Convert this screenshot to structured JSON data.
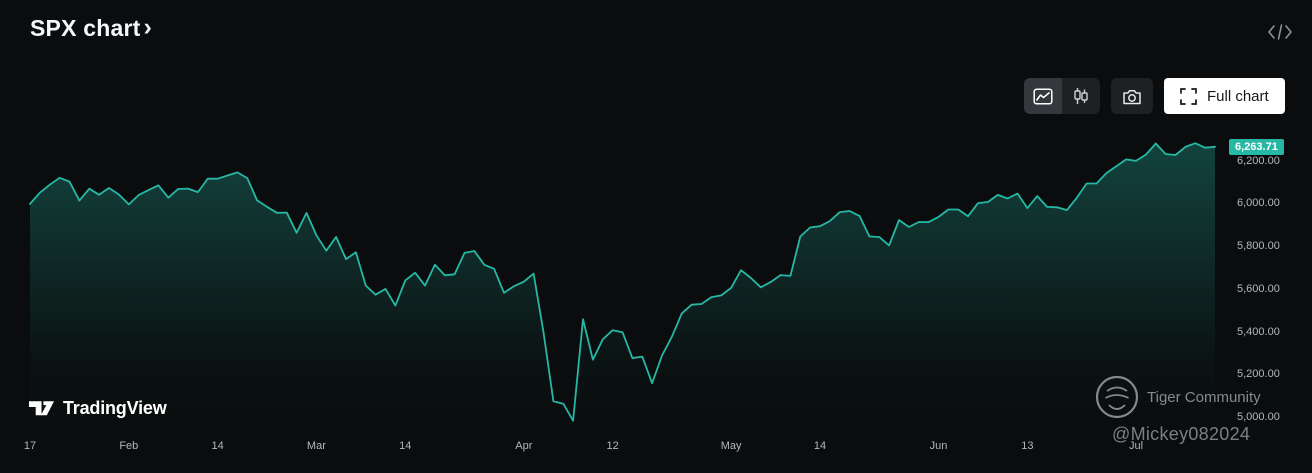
{
  "header": {
    "title": "SPX chart",
    "chevron": "›"
  },
  "toolbar": {
    "full_chart_label": "Full chart",
    "icons": [
      "area-style-icon",
      "candles-style-icon",
      "camera-snapshot-icon",
      "fullscreen-corners-icon",
      "embed-code-icon"
    ]
  },
  "branding": {
    "tradingview_label": "TradingView",
    "tradingview_logo_icon": "tv-17-mark"
  },
  "watermark": {
    "community_label": "Tiger Community",
    "handle": "@Mickey082024",
    "logo_icon": "tiger-circle-mark"
  },
  "colors": {
    "accent": "#26b8a5",
    "background": "#0a0c0d",
    "axis_text": "#b4b7bc",
    "badge_text": "#ffffff",
    "full_chart_bg": "#ffffff",
    "full_chart_text": "#16191c"
  },
  "chart_data": {
    "type": "area",
    "title": "SPX chart",
    "legend": [
      "SPX"
    ],
    "grid": false,
    "legend_position": "none",
    "ylim": [
      4930,
      6305
    ],
    "y_ticks": [
      6200,
      6000,
      5800,
      5600,
      5400,
      5200,
      5000
    ],
    "y_tick_labels": [
      "6,200.00",
      "6,000.00",
      "5,800.00",
      "5,600.00",
      "5,400.00",
      "5,200.00",
      "5,000.00"
    ],
    "x_ticks": [
      {
        "label": "17",
        "date": "2025-01-17"
      },
      {
        "label": "Feb",
        "date": "2025-02-01"
      },
      {
        "label": "14",
        "date": "2025-02-14"
      },
      {
        "label": "Mar",
        "date": "2025-03-01"
      },
      {
        "label": "14",
        "date": "2025-03-14"
      },
      {
        "label": "Apr",
        "date": "2025-04-01"
      },
      {
        "label": "12",
        "date": "2025-04-12"
      },
      {
        "label": "May",
        "date": "2025-05-01"
      },
      {
        "label": "14",
        "date": "2025-05-14"
      },
      {
        "label": "Jun",
        "date": "2025-06-01"
      },
      {
        "label": "13",
        "date": "2025-06-13"
      },
      {
        "label": "Jul",
        "date": "2025-07-01"
      }
    ],
    "last_price": 6263.71,
    "series": [
      {
        "name": "SPX",
        "points": [
          [
            "2025-01-17",
            5996.66
          ],
          [
            "2025-01-21",
            6049.24
          ],
          [
            "2025-01-22",
            6086.37
          ],
          [
            "2025-01-23",
            6118.71
          ],
          [
            "2025-01-24",
            6101.24
          ],
          [
            "2025-01-27",
            6012.28
          ],
          [
            "2025-01-28",
            6067.7
          ],
          [
            "2025-01-29",
            6039.31
          ],
          [
            "2025-01-30",
            6071.17
          ],
          [
            "2025-01-31",
            6040.53
          ],
          [
            "2025-02-03",
            5994.57
          ],
          [
            "2025-02-04",
            6037.88
          ],
          [
            "2025-02-05",
            6061.48
          ],
          [
            "2025-02-06",
            6083.57
          ],
          [
            "2025-02-07",
            6025.99
          ],
          [
            "2025-02-10",
            6066.44
          ],
          [
            "2025-02-11",
            6068.5
          ],
          [
            "2025-02-12",
            6051.97
          ],
          [
            "2025-02-13",
            6115.07
          ],
          [
            "2025-02-14",
            6114.63
          ],
          [
            "2025-02-18",
            6129.58
          ],
          [
            "2025-02-19",
            6144.15
          ],
          [
            "2025-02-20",
            6117.52
          ],
          [
            "2025-02-21",
            6013.13
          ],
          [
            "2025-02-24",
            5983.25
          ],
          [
            "2025-02-25",
            5955.25
          ],
          [
            "2025-02-26",
            5956.06
          ],
          [
            "2025-02-27",
            5861.57
          ],
          [
            "2025-02-28",
            5954.5
          ],
          [
            "2025-03-03",
            5849.72
          ],
          [
            "2025-03-04",
            5778.15
          ],
          [
            "2025-03-05",
            5842.63
          ],
          [
            "2025-03-06",
            5738.52
          ],
          [
            "2025-03-07",
            5770.2
          ],
          [
            "2025-03-10",
            5614.56
          ],
          [
            "2025-03-11",
            5572.07
          ],
          [
            "2025-03-12",
            5599.3
          ],
          [
            "2025-03-13",
            5521.52
          ],
          [
            "2025-03-14",
            5638.94
          ],
          [
            "2025-03-17",
            5675.12
          ],
          [
            "2025-03-18",
            5614.66
          ],
          [
            "2025-03-19",
            5712.2
          ],
          [
            "2025-03-20",
            5662.89
          ],
          [
            "2025-03-21",
            5667.56
          ],
          [
            "2025-03-24",
            5767.57
          ],
          [
            "2025-03-25",
            5776.65
          ],
          [
            "2025-03-26",
            5712.2
          ],
          [
            "2025-03-27",
            5693.31
          ],
          [
            "2025-03-28",
            5580.94
          ],
          [
            "2025-03-31",
            5611.85
          ],
          [
            "2025-04-01",
            5633.07
          ],
          [
            "2025-04-02",
            5670.97
          ],
          [
            "2025-04-03",
            5396.52
          ],
          [
            "2025-04-04",
            5074.08
          ],
          [
            "2025-04-07",
            5062.25
          ],
          [
            "2025-04-08",
            4982.77
          ],
          [
            "2025-04-09",
            5456.9
          ],
          [
            "2025-04-10",
            5268.05
          ],
          [
            "2025-04-11",
            5363.36
          ],
          [
            "2025-04-14",
            5405.97
          ],
          [
            "2025-04-15",
            5396.63
          ],
          [
            "2025-04-16",
            5275.7
          ],
          [
            "2025-04-17",
            5282.7
          ],
          [
            "2025-04-21",
            5158.2
          ],
          [
            "2025-04-22",
            5287.76
          ],
          [
            "2025-04-23",
            5375.86
          ],
          [
            "2025-04-24",
            5484.77
          ],
          [
            "2025-04-25",
            5525.21
          ],
          [
            "2025-04-28",
            5528.75
          ],
          [
            "2025-04-29",
            5560.83
          ],
          [
            "2025-04-30",
            5569.06
          ],
          [
            "2025-05-01",
            5604.14
          ],
          [
            "2025-05-02",
            5686.67
          ],
          [
            "2025-05-05",
            5650.38
          ],
          [
            "2025-05-06",
            5606.91
          ],
          [
            "2025-05-07",
            5631.28
          ],
          [
            "2025-05-08",
            5663.94
          ],
          [
            "2025-05-09",
            5659.91
          ],
          [
            "2025-05-12",
            5844.19
          ],
          [
            "2025-05-13",
            5886.55
          ],
          [
            "2025-05-14",
            5892.58
          ],
          [
            "2025-05-15",
            5916.93
          ],
          [
            "2025-05-16",
            5958.38
          ],
          [
            "2025-05-19",
            5963.6
          ],
          [
            "2025-05-20",
            5940.46
          ],
          [
            "2025-05-21",
            5844.61
          ],
          [
            "2025-05-22",
            5842.01
          ],
          [
            "2025-05-23",
            5802.82
          ],
          [
            "2025-05-27",
            5921.54
          ],
          [
            "2025-05-28",
            5888.55
          ],
          [
            "2025-05-29",
            5912.17
          ],
          [
            "2025-05-30",
            5911.69
          ],
          [
            "2025-06-02",
            5935.94
          ],
          [
            "2025-06-03",
            5970.37
          ],
          [
            "2025-06-04",
            5970.81
          ],
          [
            "2025-06-05",
            5939.3
          ],
          [
            "2025-06-06",
            6000.36
          ],
          [
            "2025-06-09",
            6005.88
          ],
          [
            "2025-06-10",
            6038.81
          ],
          [
            "2025-06-11",
            6022.24
          ],
          [
            "2025-06-12",
            6045.26
          ],
          [
            "2025-06-13",
            5976.97
          ],
          [
            "2025-06-16",
            6033.11
          ],
          [
            "2025-06-17",
            5982.72
          ],
          [
            "2025-06-18",
            5980.87
          ],
          [
            "2025-06-20",
            5967.84
          ],
          [
            "2025-06-23",
            6025.17
          ],
          [
            "2025-06-24",
            6092.18
          ],
          [
            "2025-06-25",
            6092.16
          ],
          [
            "2025-06-26",
            6141.02
          ],
          [
            "2025-06-27",
            6173.07
          ],
          [
            "2025-06-30",
            6204.95
          ],
          [
            "2025-07-01",
            6198.01
          ],
          [
            "2025-07-02",
            6227.42
          ],
          [
            "2025-07-03",
            6279.35
          ],
          [
            "2025-07-07",
            6229.98
          ],
          [
            "2025-07-08",
            6225.52
          ],
          [
            "2025-07-09",
            6263.26
          ],
          [
            "2025-07-10",
            6280.46
          ],
          [
            "2025-07-11",
            6259.75
          ],
          [
            "2025-07-14",
            6263.71
          ]
        ]
      }
    ]
  }
}
